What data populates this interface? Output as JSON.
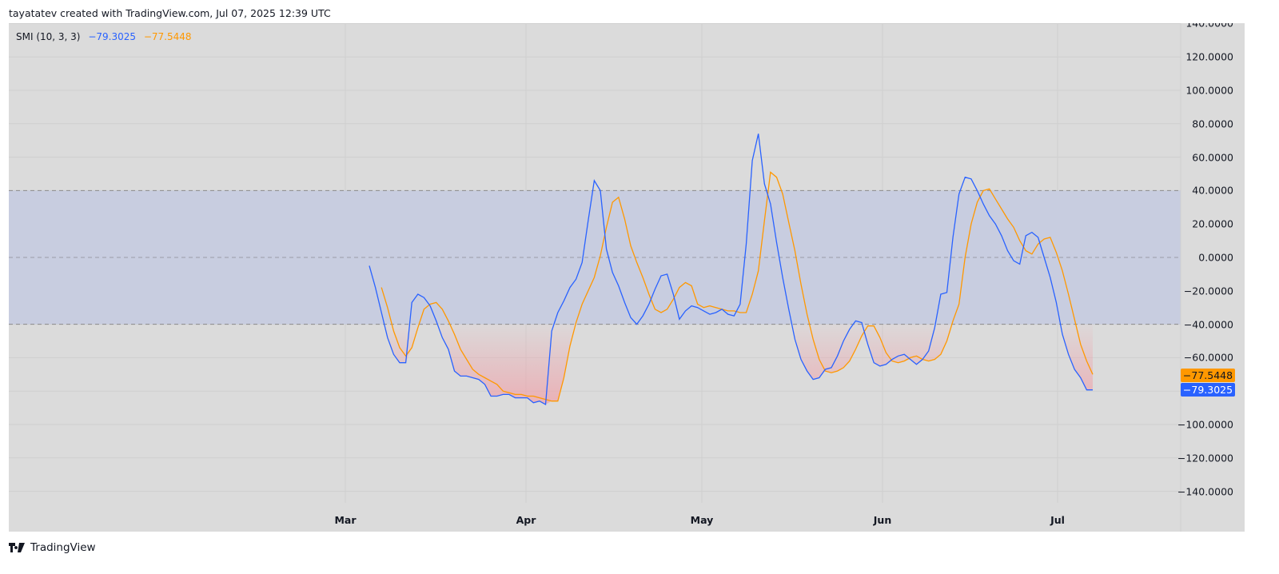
{
  "header": {
    "text": "tayatatev created with TradingView.com, Jul 07, 2025 12:39 UTC"
  },
  "legend": {
    "name": "SMI (10, 3, 3)",
    "smi_value": "−79.3025",
    "signal_value": "−77.5448"
  },
  "colors": {
    "smi": "#2962ff",
    "signal": "#ff9800",
    "background": "#dbdbdb",
    "band": "#c8cde0",
    "oversold_fill": "#f0a0a8",
    "overbought_fill": "#b9e3c6"
  },
  "price_tags": {
    "signal": "−77.5448",
    "smi": "−79.3025"
  },
  "footer": {
    "brand": "TradingView"
  },
  "chart_data": {
    "type": "line",
    "title": "SMI (10, 3, 3)",
    "xlabel": "",
    "ylabel": "",
    "ylim": [
      -150,
      140
    ],
    "grid": true,
    "legend_position": "top-left",
    "x_tick_labels": [
      "Mar",
      "Apr",
      "May",
      "Jun",
      "Jul"
    ],
    "y_tick_labels": [
      "140.0000",
      "120.0000",
      "100.0000",
      "80.0000",
      "60.0000",
      "40.0000",
      "20.0000",
      "0.0000",
      "−20.0000",
      "−40.0000",
      "−60.0000",
      "−80.0000",
      "−100.0000",
      "−120.0000",
      "−140.0000"
    ],
    "bands": {
      "upper": 40,
      "middle": 0,
      "lower": -40
    },
    "series": [
      {
        "name": "SMI",
        "color": "#2962ff",
        "last": -79.3025,
        "values": [
          -5,
          -18,
          -33,
          -48,
          -58,
          -63,
          -63,
          -27,
          -22,
          -24,
          -29,
          -38,
          -48,
          -55,
          -68,
          -71,
          -71,
          -72,
          -73,
          -76,
          -83,
          -83,
          -82,
          -82,
          -84,
          -84,
          -84,
          -87,
          -86,
          -88,
          -44,
          -33,
          -26,
          -18,
          -13,
          -3,
          22,
          46,
          40,
          5,
          -9,
          -17,
          -27,
          -36,
          -40,
          -35,
          -28,
          -19,
          -11,
          -10,
          -22,
          -37,
          -32,
          -29,
          -30,
          -32,
          -34,
          -33,
          -31,
          -34,
          -35,
          -28,
          8,
          58,
          74,
          44,
          32,
          9,
          -12,
          -31,
          -49,
          -61,
          -68,
          -73,
          -72,
          -67,
          -66,
          -59,
          -50,
          -43,
          -38,
          -39,
          -52,
          -63,
          -65,
          -64,
          -61,
          -59,
          -58,
          -61,
          -64,
          -61,
          -56,
          -42,
          -22,
          -21,
          12,
          38,
          48,
          47,
          40,
          32,
          25,
          20,
          13,
          4,
          -2,
          -4,
          13,
          15,
          12,
          0,
          -12,
          -27,
          -46,
          -58,
          -67,
          -72,
          -79.3,
          -79.3
        ]
      },
      {
        "name": "Signal",
        "color": "#ff9800",
        "last": -77.5448,
        "values": [
          -18,
          -30,
          -44,
          -54,
          -59,
          -54,
          -42,
          -31,
          -28,
          -27,
          -31,
          -38,
          -46,
          -55,
          -61,
          -67,
          -70,
          -72,
          -74,
          -76,
          -80,
          -81,
          -82,
          -82,
          -83,
          -83,
          -84,
          -85,
          -86,
          -86,
          -72,
          -53,
          -39,
          -28,
          -20,
          -12,
          1,
          18,
          33,
          36,
          23,
          7,
          -3,
          -12,
          -22,
          -31,
          -33,
          -31,
          -25,
          -18,
          -15,
          -17,
          -28,
          -30,
          -29,
          -30,
          -31,
          -32,
          -32,
          -33,
          -33,
          -22,
          -8,
          22,
          51,
          48,
          38,
          21,
          4,
          -16,
          -34,
          -49,
          -61,
          -68,
          -69,
          -68,
          -66,
          -62,
          -55,
          -47,
          -41,
          -41,
          -48,
          -57,
          -62,
          -63,
          -62,
          -60,
          -59,
          -61,
          -62,
          -61,
          -58,
          -50,
          -38,
          -28,
          0,
          20,
          33,
          40,
          41,
          35,
          29,
          23,
          18,
          10,
          4,
          2,
          8,
          11,
          12,
          3,
          -8,
          -22,
          -37,
          -52,
          -62,
          -70,
          -75,
          -77.5
        ]
      }
    ]
  }
}
